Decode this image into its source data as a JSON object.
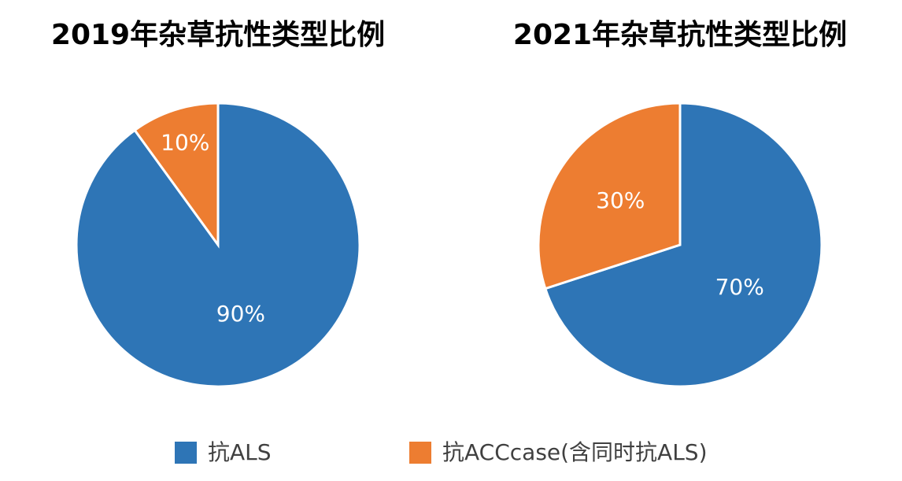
{
  "chart_data": [
    {
      "type": "pie",
      "title": "2019年杂草抗性类型比例",
      "values": [
        90,
        10
      ],
      "value_labels": [
        "90%",
        "10%"
      ]
    },
    {
      "type": "pie",
      "title": "2021年杂草抗性类型比例",
      "values": [
        70,
        30
      ],
      "value_labels": [
        "70%",
        "30%"
      ]
    }
  ],
  "legend": [
    {
      "label": "抗ALS",
      "color": "#2e75b6"
    },
    {
      "label": "抗ACCcase(含同时抗ALS)",
      "color": "#ed7d31"
    }
  ]
}
